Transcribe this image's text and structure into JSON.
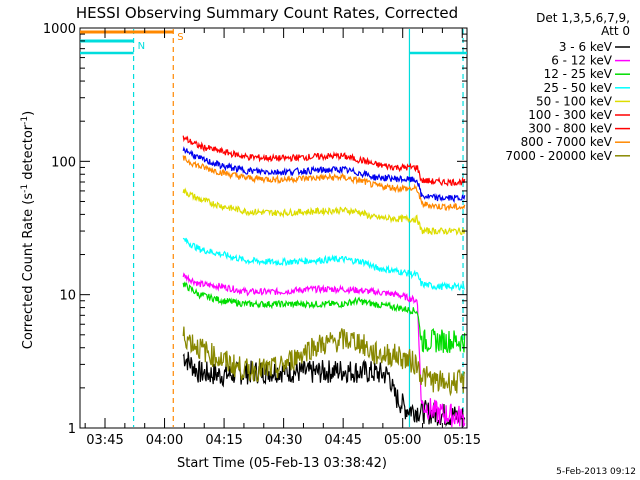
{
  "chart_data": {
    "type": "line",
    "title": "HESSI Observing Summary Count Rates, Corrected",
    "xlabel": "Start Time (05-Feb-13 03:38:42)",
    "ylabel_main": "Corrected Count Rate (s",
    "ylabel_sup1": "-1",
    "ylabel_mid": " detector",
    "ylabel_sup2": "-1",
    "ylabel_end": ")",
    "yscale": "log",
    "ylim": [
      1,
      1000
    ],
    "xlim_minutes": [
      0,
      97.5
    ],
    "x_ticks": [
      {
        "label": "03:45",
        "t": 6.3
      },
      {
        "label": "04:00",
        "t": 21.3
      },
      {
        "label": "04:15",
        "t": 36.3
      },
      {
        "label": "04:30",
        "t": 51.3
      },
      {
        "label": "04:45",
        "t": 66.3
      },
      {
        "label": "05:00",
        "t": 81.3
      },
      {
        "label": "05:15",
        "t": 96.3
      }
    ],
    "y_ticks": [
      {
        "label": "1",
        "v": 1
      },
      {
        "label": "10",
        "v": 10
      },
      {
        "label": "100",
        "v": 100
      },
      {
        "label": "1000",
        "v": 1000
      }
    ],
    "legend": {
      "header_line1": "Det 1,3,5,6,7,9,",
      "header_line2": "Att 0",
      "placement": "right"
    },
    "series": [
      {
        "name": "3 - 6 keV",
        "color": "#000000",
        "x": [
          26,
          30,
          36,
          42,
          50,
          58,
          66,
          74,
          78,
          79,
          82,
          88,
          97
        ],
        "y": [
          3.5,
          2.6,
          2.5,
          2.6,
          2.7,
          2.6,
          2.7,
          2.6,
          2.5,
          1.8,
          1.4,
          1.3,
          1.2
        ]
      },
      {
        "name": "6 - 12 keV",
        "color": "#ff00ff",
        "x": [
          26,
          30,
          36,
          42,
          50,
          58,
          66,
          70,
          74,
          80,
          85,
          86,
          90,
          97
        ],
        "y": [
          14,
          12,
          11.5,
          10.5,
          10.5,
          11,
          11,
          10.8,
          10.5,
          10,
          9,
          1.5,
          1.3,
          1.2
        ]
      },
      {
        "name": "12 - 25 keV",
        "color": "#00dd00",
        "x": [
          26,
          30,
          36,
          42,
          50,
          58,
          66,
          70,
          74,
          80,
          85,
          86,
          90,
          97
        ],
        "y": [
          12,
          10,
          9,
          8.5,
          8.5,
          8.5,
          8.5,
          9,
          8.5,
          8,
          7.5,
          4.5,
          4.5,
          4.5
        ]
      },
      {
        "name": "25 - 50 keV",
        "color": "#00ffff",
        "x": [
          26,
          30,
          36,
          42,
          50,
          58,
          66,
          72,
          74,
          80,
          85,
          86,
          90,
          97
        ],
        "y": [
          26,
          22,
          20,
          18,
          17.5,
          18,
          18.5,
          17.5,
          16,
          15,
          14,
          12,
          11.5,
          11.5
        ]
      },
      {
        "name": "50 - 100 keV",
        "color": "#dddd00",
        "x": [
          26,
          30,
          36,
          42,
          50,
          58,
          66,
          70,
          74,
          80,
          85,
          86,
          90,
          97
        ],
        "y": [
          60,
          52,
          46,
          42,
          41,
          42,
          43,
          42,
          38,
          37,
          37,
          30,
          30,
          30
        ]
      },
      {
        "name": "100 - 300 keV",
        "color": "#ff0000",
        "x": [
          26,
          30,
          36,
          42,
          50,
          58,
          66,
          72,
          74,
          80,
          85,
          86,
          90,
          97
        ],
        "y": [
          150,
          130,
          118,
          108,
          105,
          108,
          110,
          100,
          95,
          90,
          90,
          72,
          70,
          70
        ]
      },
      {
        "name": "300 - 800 keV",
        "color": "#ff0000",
        "x": [
          26,
          97
        ],
        "y": [
          0,
          0
        ]
      },
      {
        "name": "800 - 7000 keV",
        "color": "#ff8800",
        "x": [
          26,
          30,
          36,
          42,
          50,
          58,
          66,
          72,
          74,
          80,
          85,
          86,
          90,
          97
        ],
        "y": [
          105,
          92,
          82,
          75,
          73,
          75,
          76,
          70,
          66,
          63,
          62,
          48,
          46,
          45
        ]
      },
      {
        "name": "7000 - 20000 keV",
        "color": "#888800",
        "x": [
          26,
          30,
          36,
          42,
          50,
          58,
          66,
          70,
          74,
          80,
          85,
          86,
          90,
          97
        ],
        "y": [
          5,
          4,
          3.2,
          2.7,
          2.8,
          4,
          4.6,
          4.5,
          3.6,
          3.5,
          3,
          2.5,
          2.2,
          2.2
        ]
      },
      {
        "name": "",
        "color": "#0000ee",
        "x": [
          26,
          30,
          36,
          42,
          50,
          58,
          66,
          72,
          74,
          80,
          85,
          86,
          90,
          97
        ],
        "y": [
          125,
          105,
          92,
          85,
          83,
          85,
          87,
          80,
          76,
          74,
          72,
          55,
          53,
          53
        ]
      }
    ],
    "flags": [
      {
        "label": "N",
        "color": "#00dddd",
        "start": -5,
        "end": 13.5
      },
      {
        "label": "S",
        "color": "#ff8800",
        "start": -5,
        "end": 23.5
      }
    ],
    "cyan_level_segments": [
      {
        "x": [
          -5,
          13.5
        ],
        "y": 650
      },
      {
        "x": [
          83,
          97.5
        ],
        "y": 650
      }
    ],
    "vertical_lines": [
      {
        "t": 13.5,
        "color": "#00dddd",
        "style": "dashed"
      },
      {
        "t": 23.5,
        "color": "#ff8800",
        "style": "dashed"
      },
      {
        "t": 83,
        "color": "#00dddd",
        "style": "solid"
      },
      {
        "t": 96.5,
        "color": "#00dddd",
        "style": "dashed"
      }
    ],
    "timestamp": "5-Feb-2013 09:12"
  }
}
